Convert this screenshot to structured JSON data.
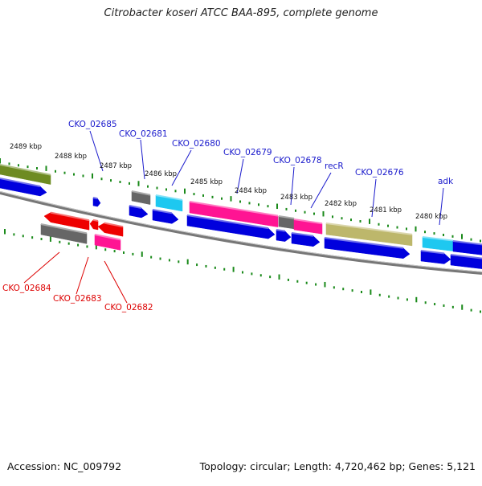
{
  "title": "Citrobacter koseri ATCC BAA-895, complete genome",
  "footer": {
    "accession": "Accession: NC_009792",
    "summary": "Topology: circular; Length: 4,720,462 bp; Genes: 5,121"
  },
  "ruler": {
    "labels": [
      "2489 kbp",
      "2488 kbp",
      "2487 kbp",
      "2486 kbp",
      "2485 kbp",
      "2484 kbp",
      "2483 kbp",
      "2482 kbp",
      "2481 kbp",
      "2480 kbp"
    ]
  },
  "genes_forward_labels": [
    "CKO_02685",
    "CKO_02681",
    "CKO_02680",
    "CKO_02679",
    "CKO_02678",
    "recR",
    "CKO_02676",
    "adk"
  ],
  "genes_reverse_labels": [
    "CKO_02684",
    "CKO_02683",
    "CKO_02682"
  ],
  "colors": {
    "forward_label": "#1a1acc",
    "reverse_label": "#dd0000",
    "cds_blue": "#0000dd",
    "olive": "#6e8b22",
    "khaki": "#bdb76b",
    "magenta": "#ff1493",
    "gray": "#666666",
    "cyan": "#1ec8f0",
    "red": "#ee0000",
    "tick": "#1a8a1a",
    "backbone": "#777777"
  }
}
